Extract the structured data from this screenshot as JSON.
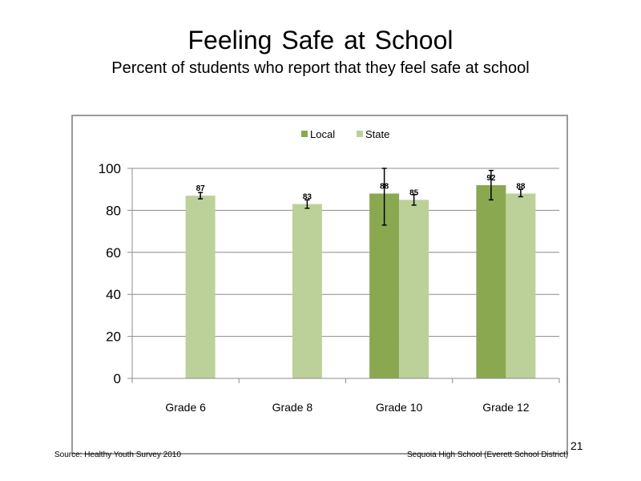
{
  "slide": {
    "title": "Feeling Safe at School",
    "subtitle": "Percent of students who report that they feel safe at school",
    "source": "Source: Healthy Youth Survey 2010",
    "district": "Sequoia High School (Everett School District)",
    "page_number": "21"
  },
  "chart_data": {
    "type": "bar",
    "title": "",
    "xlabel": "",
    "ylabel": "",
    "categories": [
      "Grade 6",
      "Grade 8",
      "Grade 10",
      "Grade 12"
    ],
    "ylim": [
      0,
      100
    ],
    "yticks": [
      0,
      20,
      40,
      60,
      80,
      100
    ],
    "grid": true,
    "legend_position": "top",
    "series": [
      {
        "name": "Local",
        "color": "#8aa850",
        "values": [
          null,
          null,
          88,
          92
        ],
        "labels": [
          "",
          "",
          "88",
          "92"
        ],
        "error_low": [
          null,
          null,
          73,
          85
        ],
        "error_high": [
          null,
          null,
          100,
          99
        ]
      },
      {
        "name": "State",
        "color": "#bcd199",
        "values": [
          87,
          83,
          85,
          88
        ],
        "labels": [
          "87",
          "83",
          "85",
          "88"
        ],
        "error_low": [
          85.5,
          81,
          82.5,
          86.5
        ],
        "error_high": [
          88.5,
          85,
          87.5,
          90
        ]
      }
    ]
  }
}
